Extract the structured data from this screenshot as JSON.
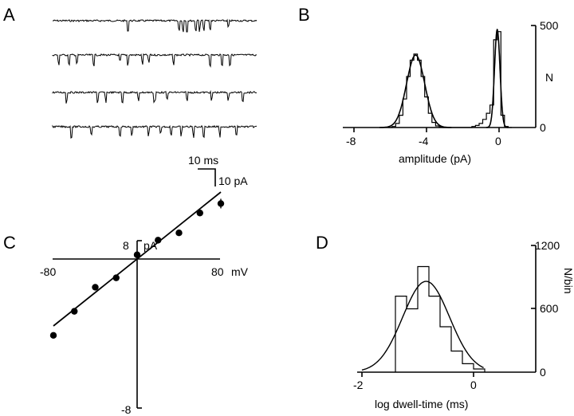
{
  "figure": {
    "panels": [
      "A",
      "B",
      "C",
      "D"
    ]
  },
  "chart_data": [
    {
      "panel": "A",
      "type": "line",
      "description_traces": 4,
      "scalebar": {
        "time_label": "10 ms",
        "current_label": "10 pA"
      },
      "trace_events": [
        [
          0.37,
          0.62,
          0.64,
          0.66,
          0.7,
          0.72,
          0.74,
          0.77,
          0.86
        ],
        [
          0.03,
          0.08,
          0.12,
          0.2,
          0.33,
          0.37,
          0.44,
          0.47,
          0.59,
          0.77,
          0.83,
          0.87
        ],
        [
          0.07,
          0.22,
          0.26,
          0.34,
          0.42,
          0.5,
          0.56,
          0.66,
          0.78,
          0.86,
          0.93
        ],
        [
          0.09,
          0.19,
          0.33,
          0.39,
          0.47,
          0.53,
          0.58,
          0.63,
          0.69,
          0.74,
          0.82,
          0.9
        ]
      ]
    },
    {
      "panel": "B",
      "type": "histogram",
      "xlabel": "amplitude (pA)",
      "ylabel": "N",
      "xlim": [
        -8,
        2
      ],
      "ylim": [
        0,
        500
      ],
      "xticks": [
        "-8",
        "-4",
        "0"
      ],
      "yticks": [
        "500",
        "0"
      ],
      "bins": {
        "x": [
          -6.0,
          -5.8,
          -5.6,
          -5.4,
          -5.2,
          -5.0,
          -4.8,
          -4.6,
          -4.4,
          -4.2,
          -4.0,
          -3.8,
          -3.6,
          -3.4,
          -3.2,
          -3.0,
          -2.8,
          -2.6,
          -2.4,
          -2.2,
          -2.0,
          -1.8,
          -1.6,
          -1.4,
          -1.2,
          -1.0,
          -0.8,
          -0.6,
          -0.4,
          -0.2,
          0.0,
          0.2,
          0.4,
          0.6
        ],
        "counts": [
          0,
          5,
          20,
          60,
          140,
          250,
          330,
          360,
          330,
          250,
          150,
          70,
          25,
          8,
          3,
          0,
          0,
          0,
          0,
          0,
          0,
          0,
          0,
          5,
          10,
          20,
          40,
          70,
          110,
          430,
          470,
          60,
          5,
          0
        ]
      },
      "fits": [
        {
          "mean": -4.6,
          "sd": 0.5,
          "peak": 355
        },
        {
          "mean": -0.1,
          "sd": 0.15,
          "peak": 480
        }
      ]
    },
    {
      "panel": "C",
      "type": "scatter",
      "xunit": "mV",
      "yunit": "pA",
      "xlim": [
        -80,
        80
      ],
      "ylim": [
        -8,
        8
      ],
      "xticks": [
        "-80",
        "80"
      ],
      "yticks": [
        "8",
        "-8"
      ],
      "x": [
        -80,
        -60,
        -40,
        -20,
        0,
        20,
        40,
        60,
        80
      ],
      "y": [
        -7.3,
        -5.0,
        -2.7,
        -1.8,
        0.4,
        1.8,
        2.5,
        4.4,
        5.3
      ],
      "fit_line": {
        "slope": 0.08,
        "intercept": 0.0
      }
    },
    {
      "panel": "D",
      "type": "histogram",
      "xlabel": "log dwell-time (ms)",
      "ylabel": "N/bin",
      "xlim": [
        -2,
        1
      ],
      "ylim": [
        0,
        1200
      ],
      "xticks": [
        "-2",
        "0"
      ],
      "yticks": [
        "1200",
        "600",
        "0"
      ],
      "bins": {
        "edges": [
          -1.4,
          -1.2,
          -1.0,
          -0.8,
          -0.6,
          -0.4,
          -0.2,
          0.0,
          0.2
        ],
        "counts": [
          720,
          600,
          1000,
          720,
          430,
          200,
          80,
          30
        ]
      },
      "fit": {
        "mean": -0.85,
        "sd": 0.42,
        "peak": 860
      }
    }
  ]
}
